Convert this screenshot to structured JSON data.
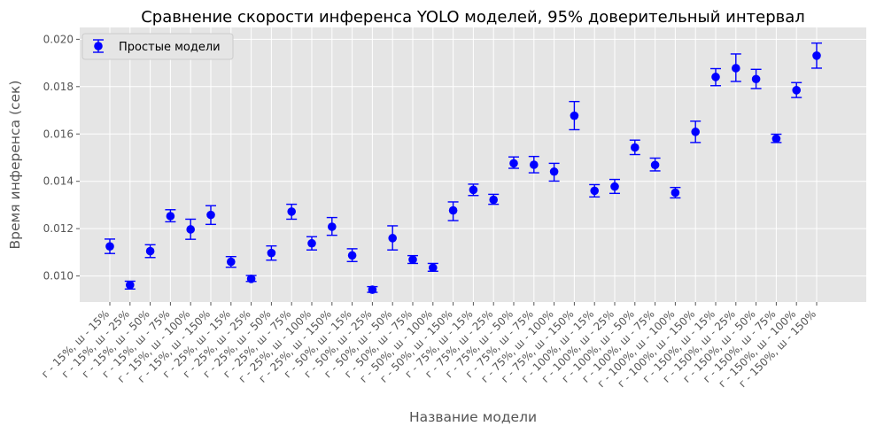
{
  "chart_data": {
    "type": "scatter",
    "title": "Сравнение скорости инференса YOLO моделей, 95% доверительный интервал",
    "xlabel": "Название модели",
    "ylabel": "Время инференса (сек)",
    "ylim": [
      0.0089,
      0.0205
    ],
    "yticks": [
      0.01,
      0.012,
      0.014,
      0.016,
      0.018,
      0.02
    ],
    "ytick_labels": [
      "0.010",
      "0.012",
      "0.014",
      "0.016",
      "0.018",
      "0.020"
    ],
    "grid": true,
    "legend_position": "top-left",
    "marker_color": "#0000ff",
    "background_color": "#e5e5e5",
    "categories": [
      "г - 15%, ш - 15%",
      "г - 15%, ш - 25%",
      "г - 15%, ш - 50%",
      "г - 15%, ш - 75%",
      "г - 15%, ш - 100%",
      "г - 15%, ш - 150%",
      "г - 25%, ш - 15%",
      "г - 25%, ш - 25%",
      "г - 25%, ш - 50%",
      "г - 25%, ш - 75%",
      "г - 25%, ш - 100%",
      "г - 25%, ш - 150%",
      "г - 50%, ш - 15%",
      "г - 50%, ш - 25%",
      "г - 50%, ш - 50%",
      "г - 50%, ш - 75%",
      "г - 50%, ш - 100%",
      "г - 50%, ш - 150%",
      "г - 75%, ш - 15%",
      "г - 75%, ш - 25%",
      "г - 75%, ш - 50%",
      "г - 75%, ш - 75%",
      "г - 75%, ш - 100%",
      "г - 75%, ш - 150%",
      "г - 100%, ш - 15%",
      "г - 100%, ш - 25%",
      "г - 100%, ш - 50%",
      "г - 100%, ш - 75%",
      "г - 100%, ш - 100%",
      "г - 100%, ш - 150%",
      "г - 150%, ш - 15%",
      "г - 150%, ш - 25%",
      "г - 150%, ш - 50%",
      "г - 150%, ш - 75%",
      "г - 150%, ш - 100%",
      "г - 150%, ш - 150%"
    ],
    "series": [
      {
        "name": "Простые модели",
        "values": [
          0.01125,
          0.00962,
          0.01105,
          0.01253,
          0.01197,
          0.01258,
          0.0106,
          0.00988,
          0.01097,
          0.01272,
          0.01138,
          0.01208,
          0.01087,
          0.00942,
          0.0116,
          0.01069,
          0.01035,
          0.01277,
          0.01364,
          0.01322,
          0.01476,
          0.0147,
          0.01441,
          0.01677,
          0.0136,
          0.01378,
          0.01543,
          0.01469,
          0.01352,
          0.01609,
          0.01841,
          0.01878,
          0.01832,
          0.0158,
          0.01785,
          0.01931
        ],
        "err_low": [
          0.01095,
          0.00945,
          0.01078,
          0.01229,
          0.01155,
          0.01218,
          0.01037,
          0.00977,
          0.01067,
          0.0124,
          0.0111,
          0.01172,
          0.01061,
          0.00931,
          0.0111,
          0.01053,
          0.0102,
          0.01234,
          0.0134,
          0.01303,
          0.01455,
          0.01436,
          0.01401,
          0.01618,
          0.01334,
          0.01349,
          0.01513,
          0.01444,
          0.0133,
          0.01564,
          0.01804,
          0.01822,
          0.01792,
          0.01564,
          0.01754,
          0.01878
        ],
        "err_high": [
          0.01156,
          0.00978,
          0.01132,
          0.0128,
          0.0124,
          0.01297,
          0.01082,
          0.01002,
          0.01127,
          0.01303,
          0.01166,
          0.01247,
          0.01115,
          0.00955,
          0.01212,
          0.01086,
          0.01053,
          0.01313,
          0.01388,
          0.01345,
          0.01503,
          0.01505,
          0.01476,
          0.01737,
          0.01386,
          0.01408,
          0.01574,
          0.01498,
          0.01374,
          0.01654,
          0.01876,
          0.01938,
          0.01873,
          0.01599,
          0.01817,
          0.01984
        ]
      }
    ]
  }
}
